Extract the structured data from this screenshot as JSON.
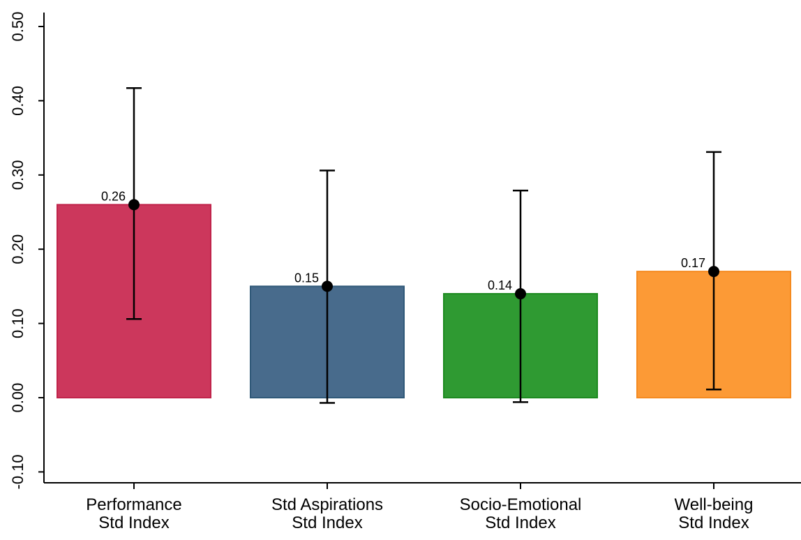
{
  "chart_data": {
    "type": "bar",
    "title": "",
    "xlabel": "",
    "ylabel": "",
    "ylim": [
      -0.12,
      0.5
    ],
    "yticks": [
      -0.1,
      0.0,
      0.1,
      0.2,
      0.3,
      0.4,
      0.5
    ],
    "ytick_labels": [
      "-0.10",
      "0.00",
      "0.10",
      "0.20",
      "0.30",
      "0.40",
      "0.50"
    ],
    "grid": false,
    "legend": "none",
    "categories": [
      [
        "Performance",
        "Std Index"
      ],
      [
        "Std Aspirations",
        "Std Index"
      ],
      [
        "Socio-Emotional",
        "Std Index"
      ],
      [
        "Well-being",
        "Std Index"
      ]
    ],
    "values": [
      0.26,
      0.15,
      0.14,
      0.17
    ],
    "value_labels": [
      "0.26",
      "0.15",
      "0.14",
      "0.17"
    ],
    "ci_low": [
      0.106,
      -0.007,
      -0.006,
      0.011
    ],
    "ci_high": [
      0.417,
      0.306,
      0.279,
      0.331
    ],
    "bar_colors": [
      "#cc375c",
      "#486b8c",
      "#2f9a32",
      "#fc9a36"
    ],
    "bar_edge_colors": [
      "#c0234a",
      "#2f5878",
      "#1c8a1f",
      "#f58a1f"
    ],
    "errorbar_color": "#000000"
  }
}
